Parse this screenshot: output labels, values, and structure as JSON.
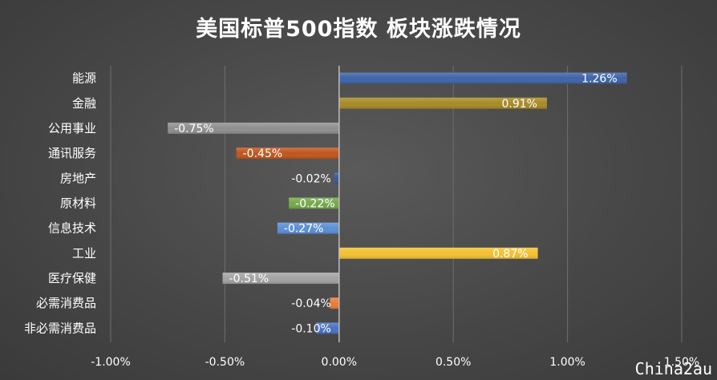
{
  "chart_data": {
    "type": "bar",
    "orientation": "horizontal",
    "title": "美国标普500指数 板块涨跌情况",
    "categories": [
      "能源",
      "金融",
      "公用事业",
      "通讯服务",
      "房地产",
      "原材料",
      "信息技术",
      "工业",
      "医疗保健",
      "必需消费品",
      "非必需消费品"
    ],
    "values": [
      1.26,
      0.91,
      -0.75,
      -0.45,
      -0.02,
      -0.22,
      -0.27,
      0.87,
      -0.51,
      -0.04,
      -0.1
    ],
    "data_labels": [
      "1.26%",
      "0.91%",
      "-0.75%",
      "-0.45%",
      "-0.02%",
      "-0.22%",
      "-0.27%",
      "0.87%",
      "-0.51%",
      "-0.04%",
      "-0.10%"
    ],
    "colors": [
      "#3f64a8",
      "#a88a26",
      "#8f8f8f",
      "#c0561d",
      "#3559a0",
      "#74a94a",
      "#5b8fd6",
      "#f3c131",
      "#a3a3a3",
      "#ec7c37",
      "#4a72c4"
    ],
    "xlim": [
      -1.0,
      1.5
    ],
    "xticks": [
      -1.0,
      -0.5,
      0.0,
      0.5,
      1.0,
      1.5
    ],
    "xtick_labels": [
      "-1.00%",
      "-0.50%",
      "0.00%",
      "0.50%",
      "1.00%",
      "1.50%"
    ],
    "grid": true
  },
  "watermark": "Chinа2au"
}
